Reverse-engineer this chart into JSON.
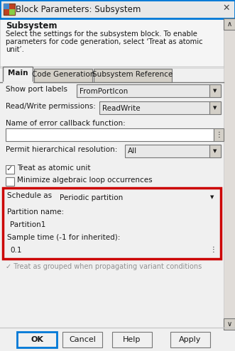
{
  "title": "Block Parameters: Subsystem",
  "section_title": "Subsystem",
  "desc_line1": "Select the settings for the subsystem block. To enable",
  "desc_line2": "parameters for code generation, select ‘Treat as atomic",
  "desc_line3": "unit’.",
  "tab_main": "Main",
  "tab_codegen": "Code Generation",
  "tab_subref": "Subsystem Reference",
  "label_portlabels": "Show port labels",
  "val_portlabels": "FromPortIcon",
  "label_rwperm": "Read/Write permissions:",
  "val_rwperm": "ReadWrite",
  "label_errcb": "Name of error callback function:",
  "label_permit": "Permit hierarchical resolution:",
  "val_permit": "All",
  "check_atomic": "Treat as atomic unit",
  "check_minimize": "Minimize algebraic loop occurrences",
  "label_schedule": "Schedule as",
  "val_schedule": "Periodic partition",
  "label_partname": "Partition name:",
  "val_partname": "Partition1",
  "label_sampletime": "Sample time (-1 for inherited):",
  "val_sampletime": "0.1",
  "footer_text": "✓ Treat as grouped when propagating variant conditions",
  "btn_ok": "OK",
  "btn_cancel": "Cancel",
  "btn_help": "Help",
  "btn_apply": "Apply",
  "bg": "#f0f0f0",
  "white": "#ffffff",
  "cream": "#fefae8",
  "title_bg": "#e8e8e8",
  "tab_active_bg": "#f0f0f0",
  "tab_inactive_bg": "#d4d0c8",
  "dropdown_bg": "#e8e8e8",
  "red_border": "#cc0000",
  "blue_border": "#0078d7",
  "border_dark": "#767676",
  "border_light": "#c8c8c8",
  "text_dark": "#1a1a1a",
  "text_gray": "#909090",
  "scrollbar_bg": "#e0dcd8"
}
